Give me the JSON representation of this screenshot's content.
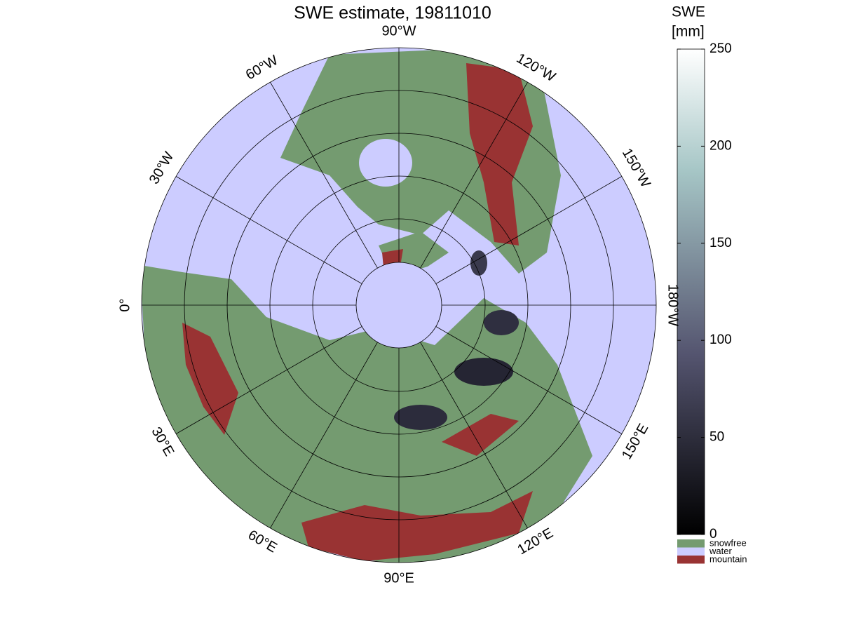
{
  "title": "SWE estimate, 19811010",
  "meridians": [
    {
      "value": -90,
      "label": "90°W"
    },
    {
      "value": -120,
      "label": "120°W"
    },
    {
      "value": -150,
      "label": "150°W"
    },
    {
      "value": -180,
      "label": "180°W"
    },
    {
      "value": 150,
      "label": "150°E"
    },
    {
      "value": 120,
      "label": "120°E"
    },
    {
      "value": 90,
      "label": "90°E"
    },
    {
      "value": 60,
      "label": "60°E"
    },
    {
      "value": 30,
      "label": "30°E"
    },
    {
      "value": 0,
      "label": "0°"
    },
    {
      "value": -30,
      "label": "30°W"
    },
    {
      "value": -60,
      "label": "60°W"
    }
  ],
  "colorbar": {
    "title": [
      "SWE",
      "[mm]"
    ],
    "lim": [
      0,
      250
    ],
    "ticks": [
      0,
      50,
      100,
      150,
      200,
      250
    ]
  },
  "legend": [
    {
      "label": "snowfree",
      "color": "#749b70"
    },
    {
      "label": "water",
      "color": "#ccccff"
    },
    {
      "label": "mountain",
      "color": "#993333"
    }
  ]
}
